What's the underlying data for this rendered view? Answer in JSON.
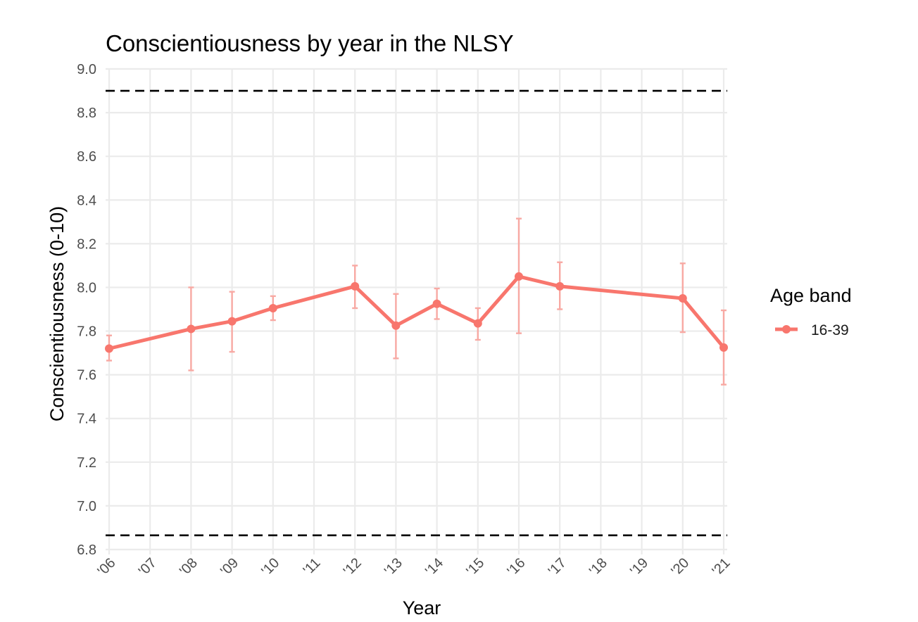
{
  "chart_data": {
    "type": "line",
    "title": "Conscientiousness by year in the NLSY",
    "xlabel": "Year",
    "ylabel": "Conscientiousness (0-10)",
    "x_ticks": [
      2006,
      2007,
      2008,
      2009,
      2010,
      2011,
      2012,
      2013,
      2014,
      2015,
      2016,
      2017,
      2018,
      2019,
      2020,
      2021
    ],
    "x_tick_labels": [
      "'06",
      "'07",
      "'08",
      "'09",
      "'10",
      "'11",
      "'12",
      "'13",
      "'14",
      "'15",
      "'16",
      "'17",
      "'18",
      "'19",
      "'20",
      "'21"
    ],
    "xlim": [
      2006,
      2021
    ],
    "ylim": [
      6.8,
      9.0
    ],
    "y_ticks": [
      6.8,
      7.0,
      7.2,
      7.4,
      7.6,
      7.8,
      8.0,
      8.2,
      8.4,
      8.6,
      8.8,
      9.0
    ],
    "y_tick_labels": [
      "6.8",
      "7.0",
      "7.2",
      "7.4",
      "7.6",
      "7.8",
      "8.0",
      "8.2",
      "8.4",
      "8.6",
      "8.8",
      "9.0"
    ],
    "reference_lines": [
      {
        "axis": "y",
        "value": 8.9,
        "style": "dashed",
        "color": "#000000"
      },
      {
        "axis": "y",
        "value": 6.865,
        "style": "dashed",
        "color": "#000000"
      }
    ],
    "grid": true,
    "legend": {
      "title": "Age band",
      "position": "right"
    },
    "series": [
      {
        "name": "16-39",
        "color": "#F8766D",
        "errorbar_color": "#F8A9A3",
        "x": [
          2006,
          2008,
          2009,
          2010,
          2012,
          2013,
          2014,
          2015,
          2016,
          2017,
          2020,
          2021
        ],
        "y": [
          7.72,
          7.81,
          7.845,
          7.905,
          8.005,
          7.825,
          7.925,
          7.835,
          8.05,
          8.005,
          7.95,
          7.725
        ],
        "y_lower": [
          7.665,
          7.62,
          7.705,
          7.85,
          7.905,
          7.675,
          7.855,
          7.76,
          7.79,
          7.9,
          7.795,
          7.555
        ],
        "y_upper": [
          7.78,
          8.0,
          7.98,
          7.96,
          8.1,
          7.97,
          7.995,
          7.905,
          8.315,
          8.115,
          8.11,
          7.895
        ]
      }
    ]
  }
}
